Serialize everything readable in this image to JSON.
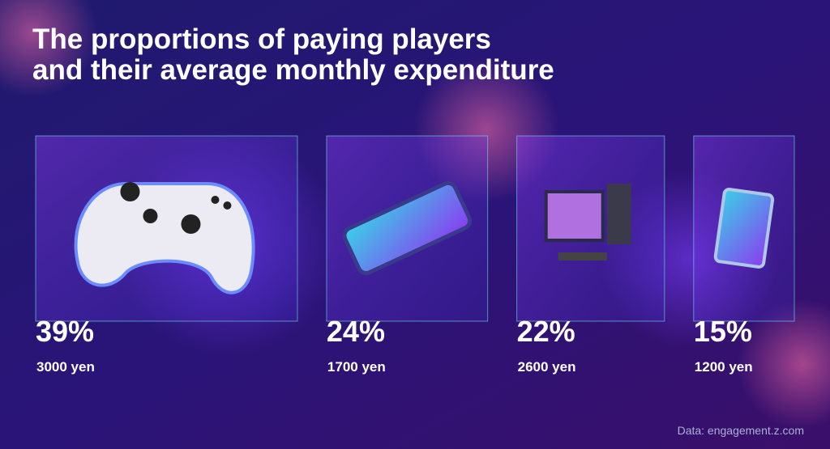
{
  "chart_data": {
    "type": "bar",
    "title": [
      "The proportions of paying players",
      "and their average monthly expenditure"
    ],
    "values": [
      39,
      24,
      22,
      15
    ],
    "value_labels": [
      "39%",
      "24%",
      "22%",
      "15%"
    ],
    "expenditure": {
      "values": [
        3000,
        1700,
        2600,
        1200
      ],
      "value_labels": [
        "3000 yen",
        "1700 yen",
        "2600 yen",
        "1200 yen"
      ]
    },
    "categories": [
      null,
      null,
      null,
      null
    ],
    "source": "Data: engagement.z.com",
    "color": "#6ee0f0"
  }
}
